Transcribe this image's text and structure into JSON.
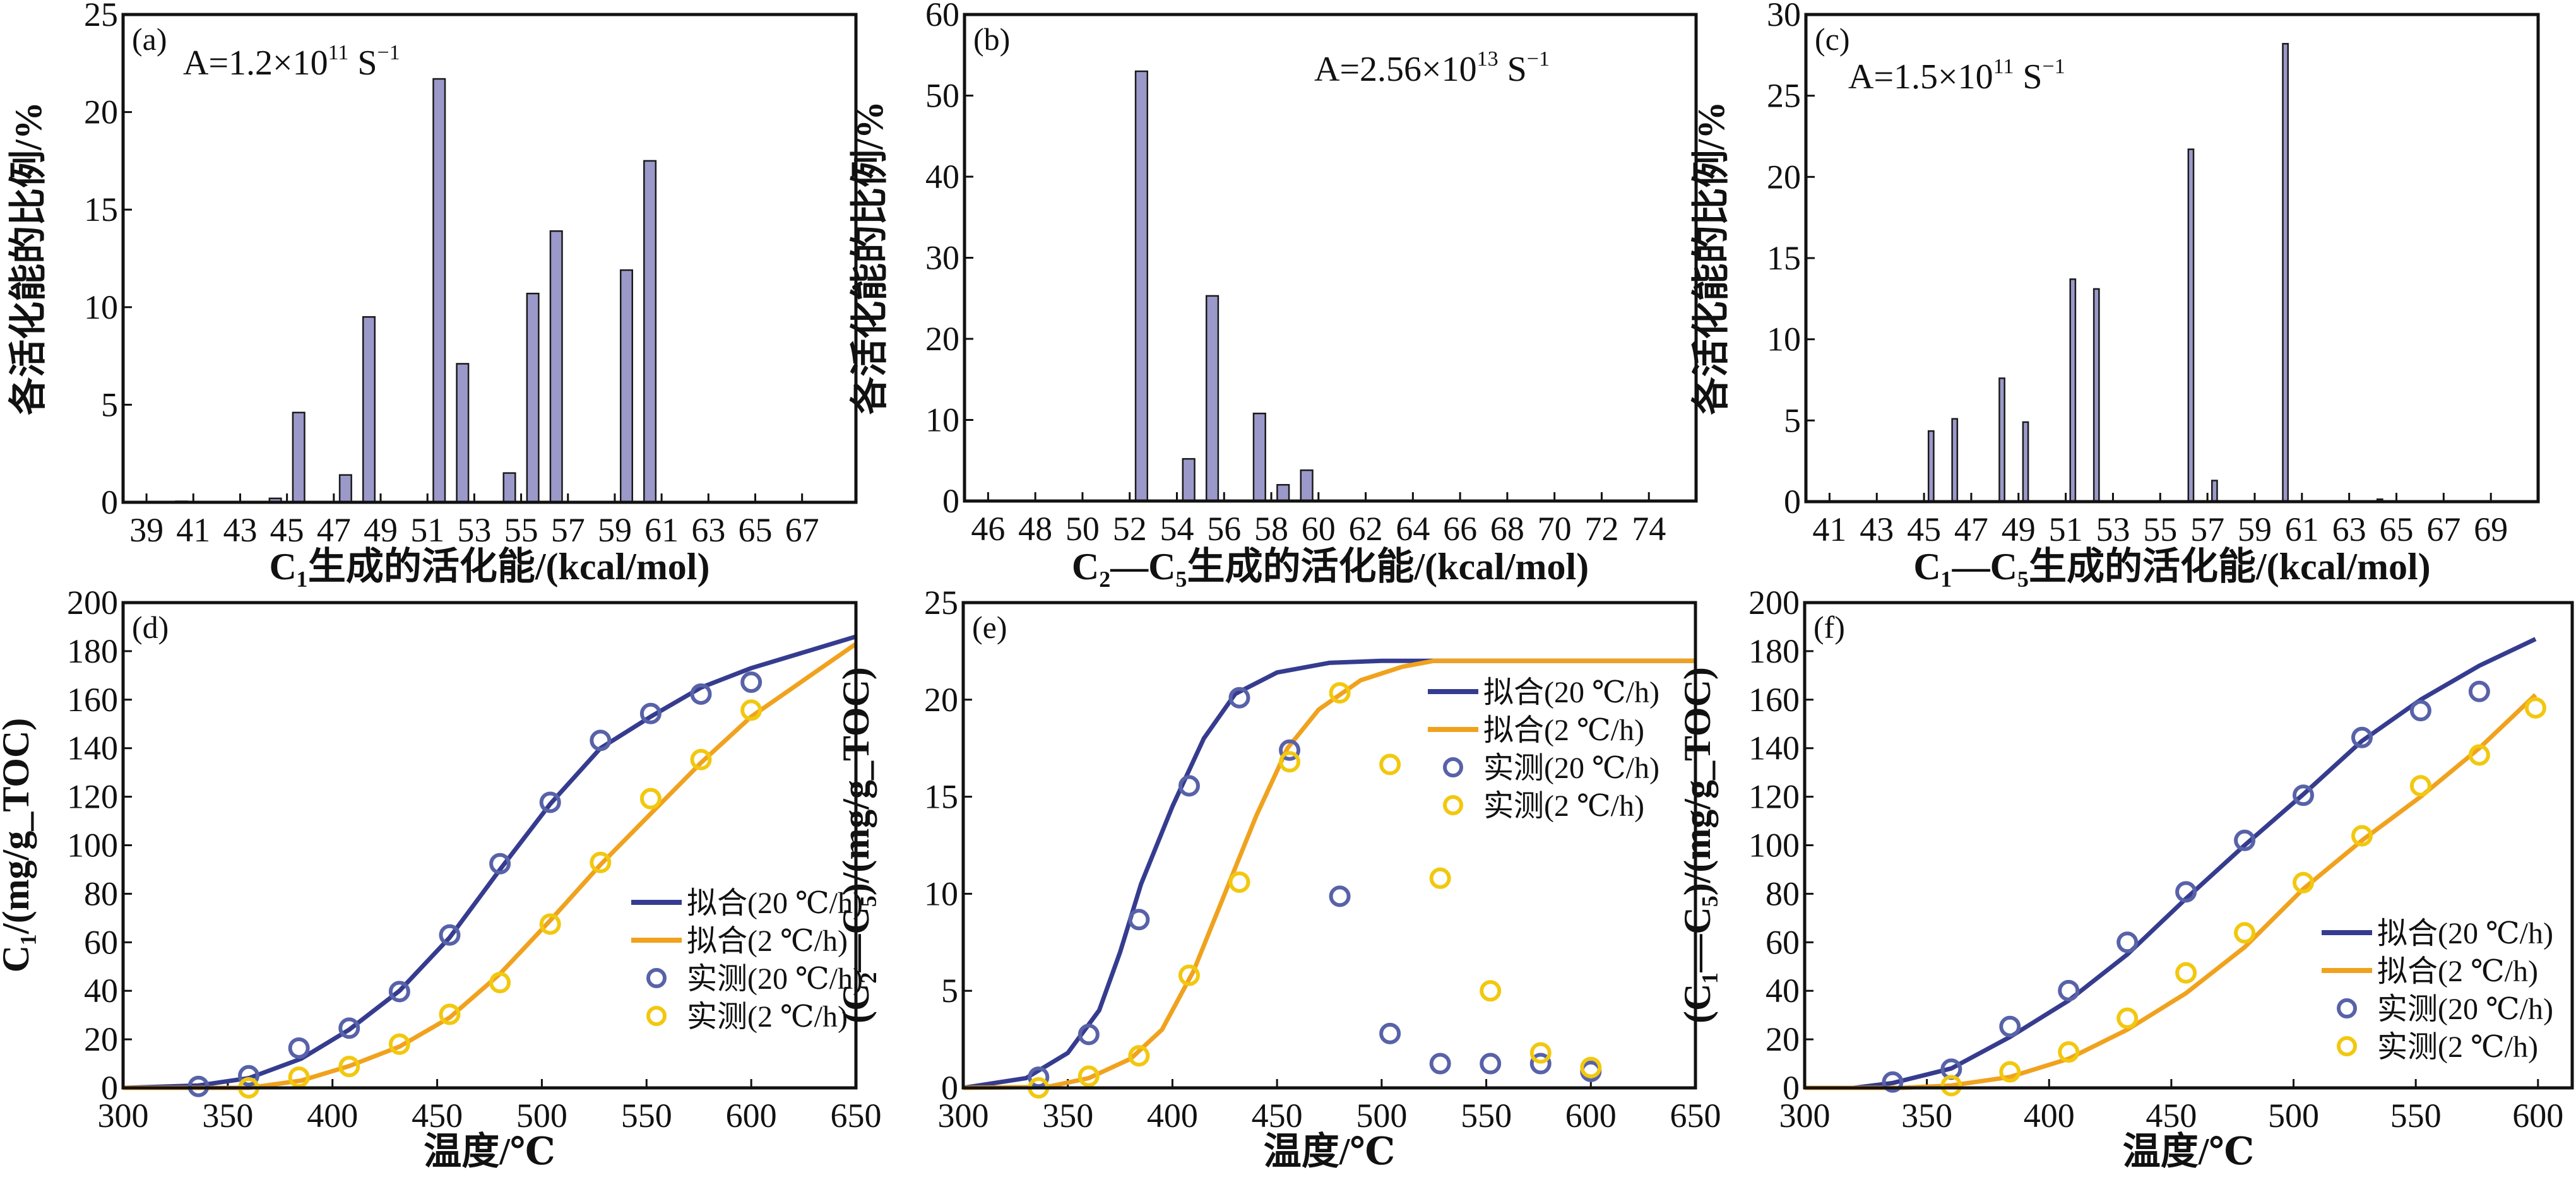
{
  "colors": {
    "bar_fill": "#9b99c9",
    "bar_edge": "#1a1a1a",
    "fit_20": "#353c8f",
    "fit_2": "#f0a21e",
    "measured_20": "#5862a8",
    "measured_2": "#f2c80f"
  },
  "chart_data": [
    {
      "type": "bar",
      "panel_label": "(a)",
      "annotation": {
        "base": "A=1.2×10",
        "exp": "11",
        "unit": " S",
        "unit_exp": "−1"
      },
      "xlabel": "C₁生成的活化能/(kcal/mol)",
      "ylabel": "各活化能的比例/%",
      "xlim": [
        38,
        69.3
      ],
      "ylim": [
        0,
        25
      ],
      "xticks": [
        39,
        41,
        43,
        45,
        47,
        49,
        51,
        53,
        55,
        57,
        59,
        61,
        63,
        65,
        67
      ],
      "yticks": [
        0,
        5,
        10,
        15,
        20,
        25
      ],
      "bar_width": 0.5,
      "x": [
        40.5,
        44.5,
        45.5,
        47.5,
        48.5,
        51.5,
        52.5,
        54.5,
        55.5,
        56.5,
        59.5,
        60.5
      ],
      "values": [
        0.05,
        0.2,
        4.6,
        1.4,
        9.5,
        21.7,
        7.1,
        1.5,
        10.7,
        13.9,
        11.9,
        17.5
      ]
    },
    {
      "type": "bar",
      "panel_label": "(b)",
      "annotation": {
        "base": "A=2.56×10",
        "exp": "13",
        "unit": " S",
        "unit_exp": "−1"
      },
      "xlabel": "C₂—C₅生成的活化能/(kcal/mol)",
      "ylabel": "各活化能的比例/%",
      "xlim": [
        45,
        76
      ],
      "ylim": [
        0,
        60
      ],
      "xticks": [
        46,
        48,
        50,
        52,
        54,
        56,
        58,
        60,
        62,
        64,
        66,
        68,
        70,
        72,
        74
      ],
      "yticks": [
        0,
        10,
        20,
        30,
        40,
        50,
        60
      ],
      "bar_width": 0.5,
      "x": [
        52.5,
        54.5,
        55.5,
        57.5,
        58.5,
        59.5
      ],
      "values": [
        53.0,
        5.2,
        25.3,
        10.8,
        2.0,
        3.8
      ]
    },
    {
      "type": "bar",
      "panel_label": "(c)",
      "annotation": {
        "base": "A=1.5×10",
        "exp": "11",
        "unit": " S",
        "unit_exp": "−1"
      },
      "xlabel": "C₁—C₅生成的活化能/(kcal/mol)",
      "ylabel": "各活化能的比例/%",
      "xlim": [
        40,
        71
      ],
      "ylim": [
        0,
        30
      ],
      "xticks": [
        41,
        43,
        45,
        47,
        49,
        51,
        53,
        55,
        57,
        59,
        61,
        63,
        65,
        67,
        69
      ],
      "yticks": [
        0,
        5,
        10,
        15,
        20,
        25,
        30
      ],
      "bar_width": 0.22,
      "x": [
        45.3,
        46.3,
        48.3,
        49.3,
        51.3,
        52.3,
        56.3,
        57.3,
        60.3,
        64.3
      ],
      "values": [
        4.35,
        5.1,
        7.6,
        4.9,
        13.7,
        13.1,
        21.7,
        1.3,
        28.2,
        0.15
      ]
    },
    {
      "type": "line",
      "panel_label": "(d)",
      "xlabel": "温度/℃",
      "ylabel": "C₁/(mg/g_TOC)",
      "xlim": [
        300,
        650
      ],
      "ylim": [
        0,
        200
      ],
      "xticks": [
        300,
        350,
        400,
        450,
        500,
        550,
        600,
        650
      ],
      "yticks": [
        0,
        20,
        40,
        60,
        80,
        100,
        120,
        140,
        160,
        180,
        200
      ],
      "legend_position": "center-right",
      "series": [
        {
          "name": "拟合(20 ℃/h)",
          "kind": "line",
          "color_key": "fit_20",
          "x": [
            300,
            336,
            360,
            385,
            408,
            432,
            456,
            480,
            504,
            528,
            552,
            576,
            600,
            650
          ],
          "y": [
            0,
            1,
            4,
            12,
            24,
            40,
            62,
            90,
            117,
            140,
            153,
            165,
            173,
            186
          ]
        },
        {
          "name": "拟合(2 ℃/h)",
          "kind": "line",
          "color_key": "fit_2",
          "x": [
            300,
            360,
            385,
            408,
            432,
            456,
            480,
            504,
            528,
            552,
            576,
            600,
            650
          ],
          "y": [
            0,
            0,
            3,
            9,
            17,
            29,
            47,
            69,
            92,
            113,
            134,
            153,
            183
          ]
        },
        {
          "name": "实测(20 ℃/h)",
          "kind": "scatter",
          "color_key": "measured_20",
          "x": [
            336,
            360,
            384,
            408,
            432,
            456,
            480,
            504,
            528,
            552,
            576,
            600
          ],
          "y": [
            0.6,
            5,
            16.4,
            24.6,
            39.7,
            63,
            92.4,
            117.7,
            143.2,
            154.3,
            162.3,
            167.2
          ]
        },
        {
          "name": "实测(2 ℃/h)",
          "kind": "scatter",
          "color_key": "measured_2",
          "x": [
            360,
            384,
            408,
            432,
            456,
            480,
            504,
            528,
            552,
            576,
            600
          ],
          "y": [
            0,
            4.4,
            8.8,
            18,
            30.3,
            43.4,
            67.5,
            92.9,
            119.2,
            135.3,
            155.7
          ]
        }
      ]
    },
    {
      "type": "line",
      "panel_label": "(e)",
      "xlabel": "温度/℃",
      "ylabel": "(C₂—C₅)/(mg/g_TOC)",
      "xlim": [
        300,
        650
      ],
      "ylim": [
        0,
        25
      ],
      "xticks": [
        300,
        350,
        400,
        450,
        500,
        550,
        600,
        650
      ],
      "yticks": [
        0,
        5,
        10,
        15,
        20,
        25
      ],
      "legend_position": "upper-right",
      "series": [
        {
          "name": "拟合(20 ℃/h)",
          "kind": "line",
          "color_key": "fit_20",
          "x": [
            300,
            330,
            350,
            365,
            375,
            385,
            400,
            415,
            430,
            450,
            475,
            500,
            650
          ],
          "y": [
            0,
            0.5,
            1.8,
            4,
            7,
            10.5,
            14.5,
            18,
            20.3,
            21.4,
            21.9,
            22,
            22
          ]
        },
        {
          "name": "拟合(2 ℃/h)",
          "kind": "line",
          "color_key": "fit_2",
          "x": [
            300,
            340,
            360,
            380,
            395,
            410,
            425,
            440,
            455,
            470,
            490,
            510,
            525,
            650
          ],
          "y": [
            0,
            0.05,
            0.5,
            1.5,
            3,
            6,
            10,
            14,
            17.5,
            19.5,
            21,
            21.7,
            22,
            22
          ]
        },
        {
          "name": "实测(20 ℃/h)",
          "kind": "scatter",
          "color_key": "measured_20",
          "x": [
            336,
            360,
            384,
            408,
            432,
            456,
            480,
            504,
            528,
            552,
            576,
            600
          ],
          "y": [
            0.55,
            2.75,
            8.67,
            15.56,
            20.1,
            17.4,
            9.87,
            2.8,
            1.25,
            1.25,
            1.25,
            0.85
          ]
        },
        {
          "name": "实测(2 ℃/h)",
          "kind": "scatter",
          "color_key": "measured_2",
          "x": [
            336,
            360,
            384,
            408,
            432,
            456,
            480,
            504,
            528,
            552,
            576,
            600
          ],
          "y": [
            0,
            0.6,
            1.65,
            5.8,
            10.6,
            16.8,
            20.35,
            16.66,
            10.8,
            5.0,
            1.8,
            1.05
          ]
        }
      ]
    },
    {
      "type": "line",
      "panel_label": "(f)",
      "xlabel": "温度/℃",
      "ylabel": "(C₁—C₅)/(mg/g_TOC)",
      "xlim": [
        300,
        614
      ],
      "ylim": [
        0,
        200
      ],
      "xticks": [
        300,
        350,
        400,
        450,
        500,
        550,
        600
      ],
      "yticks": [
        0,
        20,
        40,
        60,
        80,
        100,
        120,
        140,
        160,
        180,
        200
      ],
      "legend_position": "lower-right",
      "series": [
        {
          "name": "拟合(20 ℃/h)",
          "kind": "line",
          "color_key": "fit_20",
          "x": [
            300,
            320,
            336,
            360,
            384,
            408,
            432,
            456,
            480,
            504,
            528,
            552,
            576,
            599
          ],
          "y": [
            0,
            0,
            2,
            8,
            21,
            36,
            55,
            78,
            100,
            121,
            143,
            160,
            174,
            185
          ]
        },
        {
          "name": "拟合(2 ℃/h)",
          "kind": "line",
          "color_key": "fit_2",
          "x": [
            300,
            340,
            360,
            384,
            408,
            432,
            456,
            480,
            504,
            528,
            552,
            576,
            599
          ],
          "y": [
            0,
            0,
            1,
            4.5,
            12,
            24,
            39,
            58,
            82,
            102,
            120,
            140,
            162
          ]
        },
        {
          "name": "实测(20 ℃/h)",
          "kind": "scatter",
          "color_key": "measured_20",
          "x": [
            336,
            360,
            384,
            408,
            432,
            456,
            480,
            504,
            528,
            552,
            576
          ],
          "y": [
            2.4,
            7.7,
            25.3,
            40.1,
            60,
            80.8,
            102,
            120.6,
            144.4,
            155.5,
            163.4
          ]
        },
        {
          "name": "实测(2 ℃/h)",
          "kind": "scatter",
          "color_key": "measured_2",
          "x": [
            360,
            384,
            408,
            432,
            456,
            480,
            504,
            528,
            552,
            576,
            599
          ],
          "y": [
            0.9,
            6.6,
            14.8,
            28.7,
            47.4,
            63.9,
            84.6,
            103.9,
            124.5,
            137.2,
            156.6
          ]
        }
      ]
    }
  ]
}
